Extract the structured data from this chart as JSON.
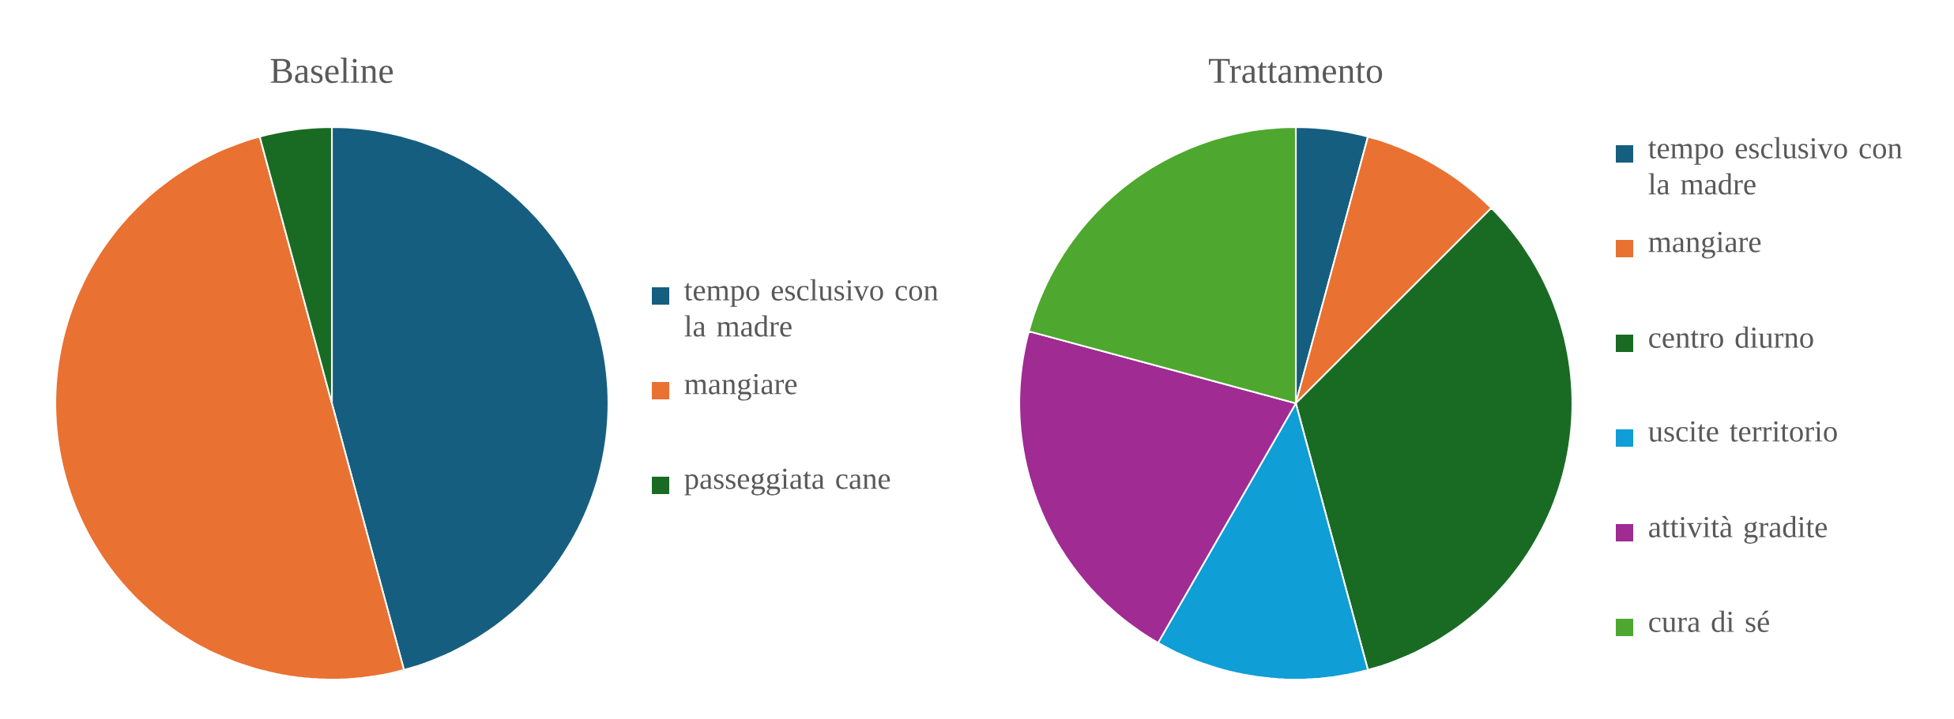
{
  "chart_data": [
    {
      "type": "pie",
      "title": "Baseline",
      "categories": [
        "tempo esclusivo con la madre",
        "mangiare",
        "passeggiata cane"
      ],
      "values": [
        45.8,
        50.0,
        4.2
      ],
      "colors": [
        "#165e80",
        "#e97132",
        "#196b24"
      ],
      "legend": "right"
    },
    {
      "type": "pie",
      "title": "Trattamento",
      "categories": [
        "tempo esclusivo con la madre",
        "mangiare",
        "centro diurno",
        "uscite territorio",
        "attività gradite",
        "cura di sé"
      ],
      "values": [
        4.2,
        8.3,
        33.3,
        12.5,
        20.9,
        20.8
      ],
      "colors": [
        "#165e80",
        "#e97132",
        "#196b24",
        "#0f9ed5",
        "#a02b93",
        "#4ea72e"
      ],
      "legend": "right"
    }
  ]
}
